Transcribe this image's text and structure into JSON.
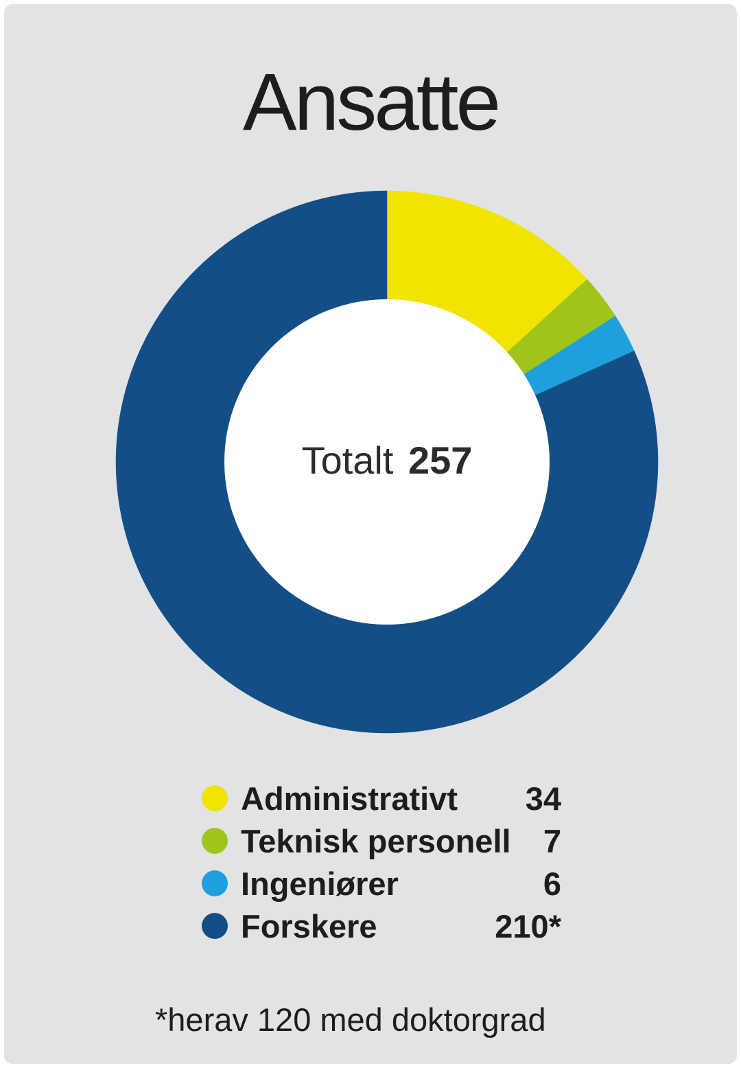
{
  "title": "Ansatte",
  "footnote": "*herav 120 med doktorgrad",
  "colors": {
    "background": "#e2e3e4",
    "donut_hole": "#ffffff",
    "text": "#1d1d1b"
  },
  "chart_data": {
    "type": "pie",
    "variant": "donut",
    "title": "Ansatte",
    "center_label": "Totalt",
    "total": 257,
    "start_angle_deg": 0,
    "direction": "clockwise",
    "inner_radius_ratio": 0.6,
    "legend_position": "bottom-left",
    "series": [
      {
        "name": "Administrativt",
        "value": 34,
        "display": "34",
        "color": "#f0e400"
      },
      {
        "name": "Teknisk personell",
        "value": 7,
        "display": "7",
        "color": "#a0c51a"
      },
      {
        "name": "Ingeniører",
        "value": 6,
        "display": "6",
        "color": "#1fa0dc"
      },
      {
        "name": "Forskere",
        "value": 210,
        "display": "210*",
        "color": "#144e86"
      }
    ]
  }
}
